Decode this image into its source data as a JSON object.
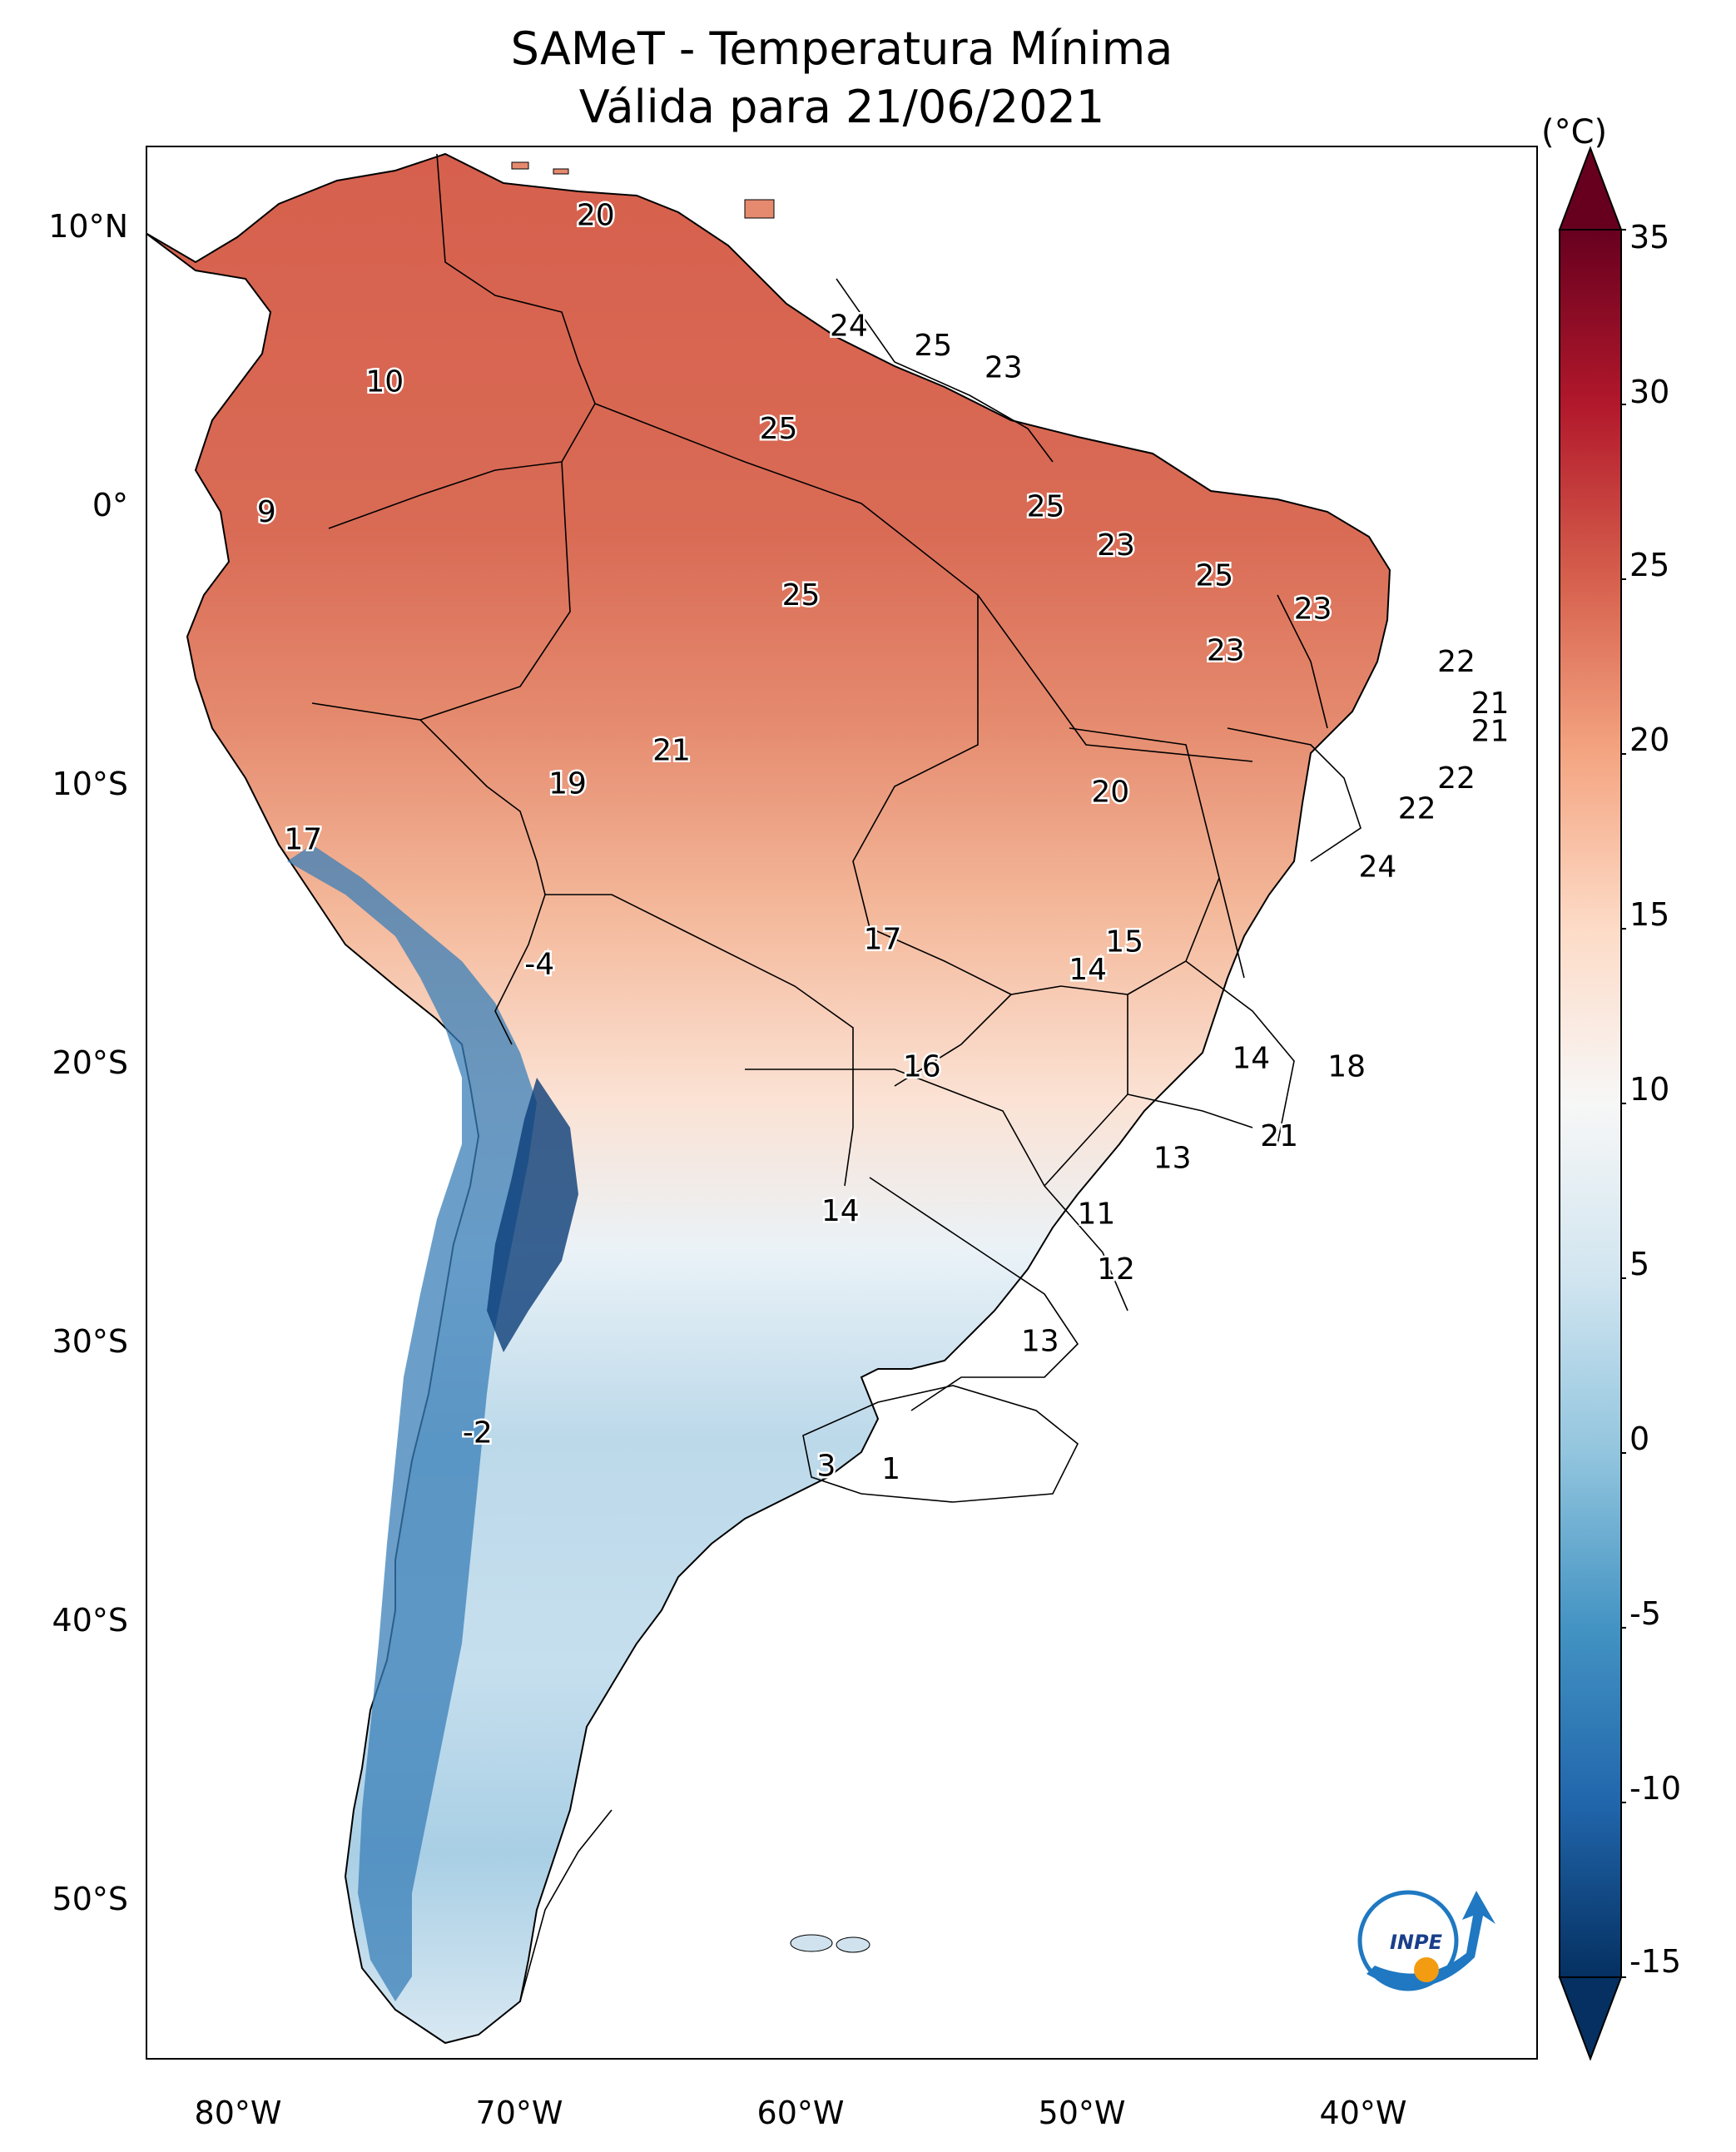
{
  "title": {
    "line1": "SAMeT - Temperatura Mínima",
    "line2": "Válida para 21/06/2021"
  },
  "axes": {
    "lat_labels": [
      "10°N",
      "0°",
      "10°S",
      "20°S",
      "30°S",
      "40°S",
      "50°S"
    ],
    "lat_values": [
      10,
      0,
      -10,
      -20,
      -30,
      -40,
      -50
    ],
    "lon_labels": [
      "80°W",
      "70°W",
      "60°W",
      "50°W",
      "40°W"
    ],
    "lon_values": [
      -80,
      -70,
      -60,
      -50,
      -40
    ],
    "lon_range": [
      -83,
      -33.5
    ],
    "lat_range": [
      -56,
      13
    ]
  },
  "colorbar": {
    "unit": "(°C)",
    "ticks": [
      "35",
      "30",
      "25",
      "20",
      "15",
      "10",
      "5",
      "0",
      "-5",
      "-10",
      "-15"
    ],
    "tick_values": [
      35,
      30,
      25,
      20,
      15,
      10,
      5,
      0,
      -5,
      -10,
      -15
    ],
    "range": [
      -15,
      35
    ],
    "colors": [
      "#053061",
      "#2166ac",
      "#4393c3",
      "#92c5de",
      "#d1e5f0",
      "#f7f7f7",
      "#fddbc7",
      "#f4a582",
      "#d6604d",
      "#b2182b",
      "#67001f"
    ]
  },
  "map_values": [
    {
      "lon": -67,
      "lat": 10.5,
      "value": "20"
    },
    {
      "lon": -74.5,
      "lat": 4.5,
      "value": "10"
    },
    {
      "lon": -58,
      "lat": 6.5,
      "value": "24"
    },
    {
      "lon": -55,
      "lat": 5.8,
      "value": "25"
    },
    {
      "lon": -52.5,
      "lat": 5,
      "value": "23"
    },
    {
      "lon": -60.5,
      "lat": 2.8,
      "value": "25"
    },
    {
      "lon": -78.7,
      "lat": -0.2,
      "value": "9"
    },
    {
      "lon": -51,
      "lat": 0,
      "value": "25"
    },
    {
      "lon": -48.5,
      "lat": -1.4,
      "value": "23"
    },
    {
      "lon": -59.7,
      "lat": -3.2,
      "value": "25"
    },
    {
      "lon": -45,
      "lat": -2.5,
      "value": "25"
    },
    {
      "lon": -41.5,
      "lat": -3.7,
      "value": "23"
    },
    {
      "lon": -44.6,
      "lat": -5.2,
      "value": "23"
    },
    {
      "lon": -36.4,
      "lat": -5.6,
      "value": "22"
    },
    {
      "lon": -35.2,
      "lat": -7.1,
      "value": "21"
    },
    {
      "lon": -35.2,
      "lat": -8.1,
      "value": "21"
    },
    {
      "lon": -64.3,
      "lat": -8.8,
      "value": "21"
    },
    {
      "lon": -68,
      "lat": -10,
      "value": "19"
    },
    {
      "lon": -48.7,
      "lat": -10.3,
      "value": "20"
    },
    {
      "lon": -36.4,
      "lat": -9.8,
      "value": "22"
    },
    {
      "lon": -37.8,
      "lat": -10.9,
      "value": "22"
    },
    {
      "lon": -77.4,
      "lat": -12,
      "value": "17"
    },
    {
      "lon": -39.2,
      "lat": -13,
      "value": "24"
    },
    {
      "lon": -56.8,
      "lat": -15.6,
      "value": "17"
    },
    {
      "lon": -48.2,
      "lat": -15.7,
      "value": "15"
    },
    {
      "lon": -49.5,
      "lat": -16.7,
      "value": "14"
    },
    {
      "lon": -69,
      "lat": -16.5,
      "value": "-4"
    },
    {
      "lon": -55.4,
      "lat": -20.2,
      "value": "16"
    },
    {
      "lon": -43.7,
      "lat": -19.9,
      "value": "14"
    },
    {
      "lon": -40.3,
      "lat": -20.2,
      "value": "18"
    },
    {
      "lon": -42.7,
      "lat": -22.7,
      "value": "21"
    },
    {
      "lon": -46.5,
      "lat": -23.5,
      "value": "13"
    },
    {
      "lon": -58.3,
      "lat": -25.4,
      "value": "14"
    },
    {
      "lon": -49.2,
      "lat": -25.5,
      "value": "11"
    },
    {
      "lon": -48.5,
      "lat": -27.5,
      "value": "12"
    },
    {
      "lon": -51.2,
      "lat": -30.1,
      "value": "13"
    },
    {
      "lon": -71.2,
      "lat": -33.4,
      "value": "-2"
    },
    {
      "lon": -58.8,
      "lat": -34.6,
      "value": "3"
    },
    {
      "lon": -56.5,
      "lat": -34.7,
      "value": "1"
    }
  ]
}
